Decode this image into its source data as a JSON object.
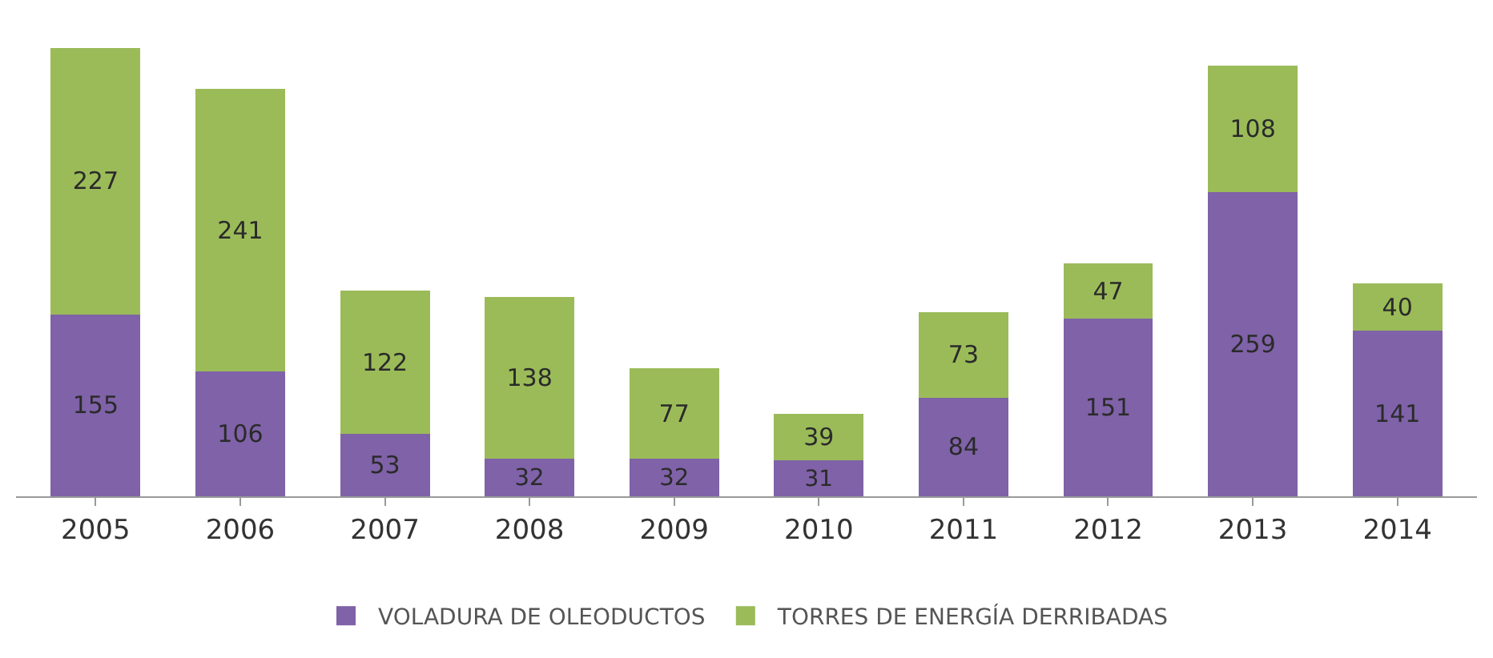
{
  "chart_data": {
    "type": "bar",
    "stacked": true,
    "data_labels": true,
    "legend": "bottom",
    "categories": [
      "2005",
      "2006",
      "2007",
      "2008",
      "2009",
      "2010",
      "2011",
      "2012",
      "2013",
      "2014"
    ],
    "series": [
      {
        "name": "VOLADURA DE OLEODUCTOS",
        "color": "#7f62a8",
        "values": [
          155,
          106,
          53,
          32,
          32,
          31,
          84,
          151,
          259,
          141
        ]
      },
      {
        "name": "TORRES DE ENERGÍA DERRIBADAS",
        "color": "#9bbb59",
        "values": [
          227,
          241,
          122,
          138,
          77,
          39,
          73,
          47,
          108,
          40
        ]
      }
    ]
  }
}
